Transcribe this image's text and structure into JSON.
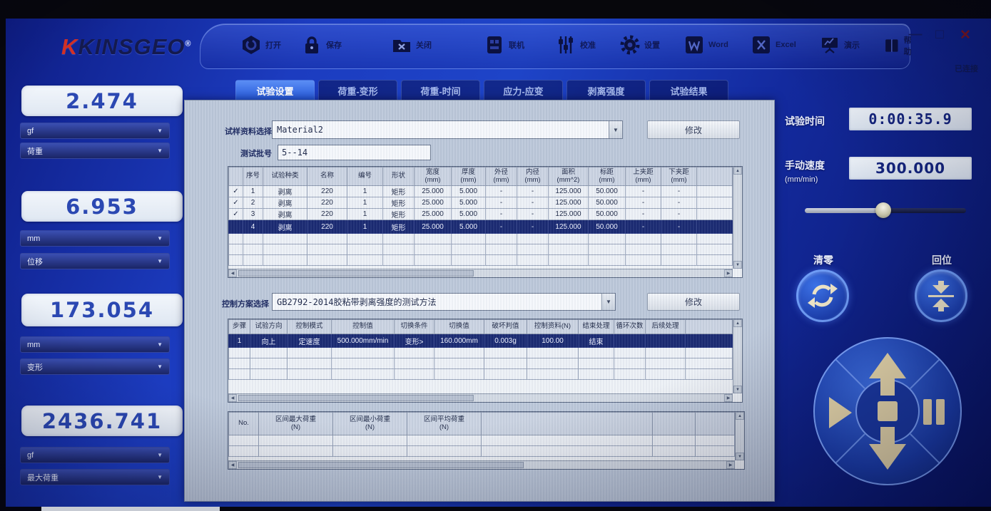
{
  "window": {
    "brand": "KINSGEO",
    "brand_reg": "®",
    "status_text": "已连接",
    "minimize": "—",
    "maximize": "□",
    "close": "✕"
  },
  "icons": {
    "up": "▲",
    "down": "▼",
    "left": "◀",
    "right": "▶",
    "dropdown": "▼"
  },
  "toolbar": {
    "items": [
      {
        "icon": "open-icon",
        "label": "打开"
      },
      {
        "icon": "save-icon",
        "label": "保存"
      },
      {
        "icon": "close-file-icon",
        "label": "关闭"
      },
      {
        "icon": "machine-icon",
        "label": "联机"
      },
      {
        "icon": "calibrate-icon",
        "label": "校准"
      },
      {
        "icon": "settings-icon",
        "label": "设置"
      },
      {
        "icon": "word-icon",
        "label": "Word"
      },
      {
        "icon": "excel-icon",
        "label": "Excel"
      },
      {
        "icon": "demo-icon",
        "label": "演示"
      },
      {
        "icon": "help-icon",
        "label": "帮助"
      }
    ]
  },
  "left_displays": [
    {
      "value": "2.474",
      "unit": "gf",
      "channel": "荷重"
    },
    {
      "value": "6.953",
      "unit": "mm",
      "channel": "位移"
    },
    {
      "value": "173.054",
      "unit": "mm",
      "channel": "变形"
    },
    {
      "value": "2436.741",
      "unit": "gf",
      "channel": "最大荷重"
    }
  ],
  "tabs": {
    "labels": [
      "试验设置",
      "荷重-变形",
      "荷重-时间",
      "应力-应变",
      "剥离强度",
      "试验结果"
    ],
    "active_index": 0
  },
  "main": {
    "material_label": "试样资料选择",
    "material_value": "Material2",
    "modify_button": "修改",
    "batch_label": "测试批号",
    "batch_value": "5--14",
    "scheme_label": "控制方案选择",
    "scheme_value": "GB2792-2014胶粘带剥离强度的测试方法",
    "spec_table": {
      "headers": [
        "",
        "序号",
        "试验种类",
        "名称",
        "编号",
        "形状",
        "宽度",
        "厚度",
        "外径",
        "内径",
        "面积",
        "标距",
        "上夹距",
        "下夹距"
      ],
      "units": [
        "",
        "",
        "",
        "",
        "",
        "",
        "(mm)",
        "(mm)",
        "(mm)",
        "(mm)",
        "(mm^2)",
        "(mm)",
        "(mm)",
        "(mm)"
      ],
      "rows": [
        [
          "✓",
          "1",
          "剥离",
          "220",
          "1",
          "矩形",
          "25.000",
          "5.000",
          "-",
          "-",
          "125.000",
          "50.000",
          "-",
          "-"
        ],
        [
          "✓",
          "2",
          "剥离",
          "220",
          "1",
          "矩形",
          "25.000",
          "5.000",
          "-",
          "-",
          "125.000",
          "50.000",
          "-",
          "-"
        ],
        [
          "✓",
          "3",
          "剥离",
          "220",
          "1",
          "矩形",
          "25.000",
          "5.000",
          "-",
          "-",
          "125.000",
          "50.000",
          "-",
          "-"
        ],
        [
          "",
          "4",
          "剥离",
          "220",
          "1",
          "矩形",
          "25.000",
          "5.000",
          "-",
          "-",
          "125.000",
          "50.000",
          "-",
          "-"
        ]
      ],
      "selected_row": 3,
      "empty_rows": 3
    },
    "control_table": {
      "headers": [
        "步骤",
        "试验方向",
        "控制模式",
        "控制值",
        "切换条件",
        "切换值",
        "破坏判值",
        "控制资料(N)",
        "结束处理",
        "循环次数",
        "后续处理"
      ],
      "units": [],
      "rows": [
        [
          "1",
          "向上",
          "定速度",
          "500.000mm/min",
          "变形>",
          "160.000mm",
          "0.003g",
          "100.00",
          "结束",
          "",
          ""
        ]
      ],
      "selected_row": 0,
      "empty_rows": 3
    },
    "result_table": {
      "headers": [
        "No.",
        "区间最大荷重",
        "区间最小荷重",
        "区间平均荷重",
        "",
        ""
      ],
      "units": [
        "",
        "(N)",
        "(N)",
        "(N)",
        "",
        ""
      ],
      "rows": [],
      "selected_row": -1,
      "empty_rows": 2
    }
  },
  "right": {
    "time_label": "试验时间",
    "time_value": "0:00:35.9",
    "speed_label": "手动速度",
    "speed_unit": "(mm/min)",
    "speed_value": "300.000",
    "zero_label": "清零",
    "home_label": "回位"
  }
}
